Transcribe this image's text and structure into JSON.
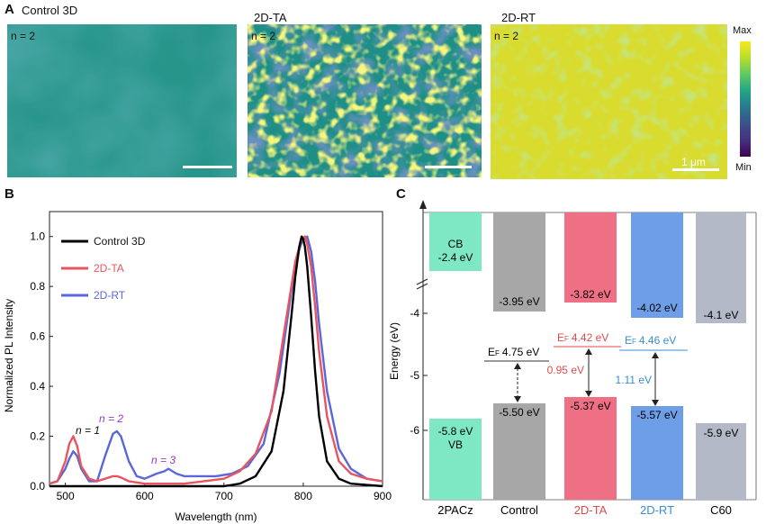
{
  "panelA": {
    "label": "A",
    "images": [
      {
        "title": "Control 3D",
        "n": "n = 2",
        "style": "control"
      },
      {
        "title": "2D-TA",
        "n": "n = 2",
        "style": "ta"
      },
      {
        "title": "2D-RT",
        "n": "n = 2",
        "style": "rt"
      }
    ],
    "scale_text": "1 μm",
    "colorbar": {
      "max": "Max",
      "min": "Min"
    }
  },
  "panelB": {
    "label": "B",
    "ylabel": "Normalized PL Intensity",
    "xlabel": "Wavelength (nm)",
    "annotations": [
      "n = 1",
      "n = 2",
      "n = 3"
    ]
  },
  "panelC": {
    "label": "C",
    "ylabel": "Energy (eV)",
    "columns": [
      "2PACz",
      "Control",
      "2D-TA",
      "2D-RT",
      "C60"
    ],
    "cb_label": "CB",
    "vb_label": "VB",
    "levels": {
      "pacz_cb": "-2.4 eV",
      "pacz_vb": "-5.8 eV",
      "control_cb": "-3.95 eV",
      "control_vb": "-5.50 eV",
      "control_ef": "4.75 eV",
      "ta_cb": "-3.82 eV",
      "ta_vb": "-5.37 eV",
      "ta_ef": "4.42 eV",
      "ta_gap": "0.95 eV",
      "rt_cb": "-4.02 eV",
      "rt_vb": "-5.57 eV",
      "rt_ef": "4.46 eV",
      "rt_gap": "1.11 eV",
      "c60_cb": "-4.1 eV",
      "c60_vb": "-5.9 eV"
    },
    "ef_label": "E",
    "ef_sub": "F"
  },
  "colors": {
    "control": "#000000",
    "ta": "#e8555f",
    "rt": "#5b67d8",
    "purple": "#9b35c9",
    "pacz": "#7ee8c4",
    "control_bar": "#a7a7a7",
    "ta_bar": "#ef6f85",
    "rt_bar": "#6f9ee8",
    "c60_bar": "#b3b9c6",
    "ta_text": "#e24a4a",
    "rt_text": "#3a8dd6"
  },
  "chart_data": {
    "type": "line",
    "title": "",
    "xlabel": "Wavelength (nm)",
    "ylabel": "Normalized PL Intensity",
    "xlim": [
      480,
      900
    ],
    "ylim": [
      0,
      1.1
    ],
    "xticks": [
      500,
      600,
      700,
      800,
      900
    ],
    "yticks": [
      0.0,
      0.2,
      0.4,
      0.6,
      0.8,
      1.0
    ],
    "series": [
      {
        "name": "Control 3D",
        "color": "#000000",
        "x": [
          480,
          500,
          510,
          530,
          560,
          600,
          650,
          700,
          720,
          740,
          760,
          775,
          785,
          790,
          795,
          798,
          800,
          802,
          805,
          810,
          815,
          820,
          830,
          845,
          860,
          880,
          900
        ],
        "y": [
          0,
          0,
          0,
          0,
          0,
          0,
          0,
          0,
          0.01,
          0.04,
          0.14,
          0.38,
          0.68,
          0.84,
          0.96,
          1.0,
          0.99,
          0.96,
          0.88,
          0.68,
          0.46,
          0.28,
          0.1,
          0.03,
          0.01,
          0.005,
          0
        ]
      },
      {
        "name": "2D-TA",
        "color": "#e8555f",
        "x": [
          480,
          490,
          500,
          505,
          510,
          515,
          520,
          530,
          540,
          550,
          560,
          565,
          570,
          580,
          600,
          650,
          700,
          720,
          740,
          760,
          775,
          790,
          798,
          802,
          805,
          810,
          815,
          820,
          830,
          845,
          860,
          880,
          900
        ],
        "y": [
          0.01,
          0.02,
          0.1,
          0.17,
          0.2,
          0.16,
          0.08,
          0.03,
          0.02,
          0.03,
          0.04,
          0.04,
          0.035,
          0.02,
          0.01,
          0.01,
          0.03,
          0.06,
          0.13,
          0.3,
          0.6,
          0.9,
          0.99,
          1.0,
          0.97,
          0.88,
          0.72,
          0.54,
          0.28,
          0.1,
          0.05,
          0.03,
          0.02
        ]
      },
      {
        "name": "2D-RT",
        "color": "#5b67d8",
        "x": [
          480,
          490,
          500,
          505,
          510,
          515,
          520,
          530,
          540,
          550,
          560,
          565,
          570,
          580,
          590,
          600,
          615,
          625,
          630,
          640,
          650,
          670,
          690,
          710,
          730,
          750,
          770,
          785,
          795,
          800,
          805,
          810,
          815,
          820,
          830,
          845,
          860,
          880,
          900
        ],
        "y": [
          0.01,
          0.02,
          0.07,
          0.11,
          0.14,
          0.12,
          0.07,
          0.02,
          0.02,
          0.12,
          0.21,
          0.22,
          0.2,
          0.1,
          0.04,
          0.03,
          0.05,
          0.06,
          0.07,
          0.05,
          0.04,
          0.04,
          0.04,
          0.05,
          0.08,
          0.17,
          0.45,
          0.78,
          0.95,
          0.99,
          1.0,
          0.94,
          0.82,
          0.65,
          0.38,
          0.15,
          0.07,
          0.03,
          0.02
        ]
      }
    ]
  }
}
